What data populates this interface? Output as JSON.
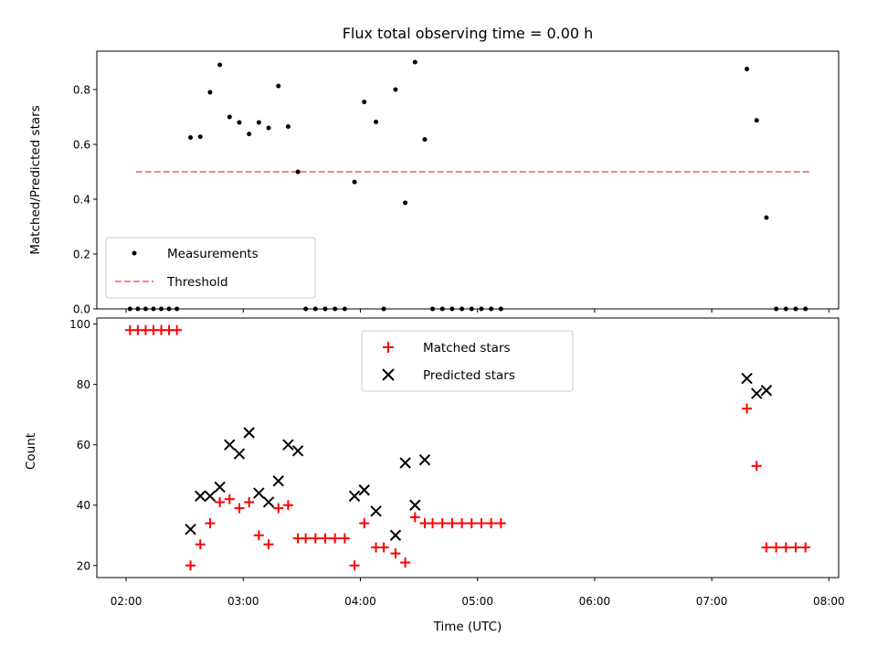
{
  "chart_data": [
    {
      "type": "scatter",
      "title": "Flux total observing time = 0.00 h",
      "xlabel": "",
      "ylabel": "Matched/Predicted stars",
      "ylim": [
        0,
        0.94
      ],
      "xlim": [
        "01:45",
        "08:05"
      ],
      "y_ticks": [
        "0.0",
        "0.2",
        "0.4",
        "0.6",
        "0.8"
      ],
      "grid": false,
      "legend_position": "lower-left",
      "series": [
        {
          "name": "Measurements",
          "kind": "points",
          "color": "#000000",
          "points": [
            [
              "02:02",
              0
            ],
            [
              "02:06",
              0
            ],
            [
              "02:10",
              0
            ],
            [
              "02:14",
              0
            ],
            [
              "02:18",
              0
            ],
            [
              "02:22",
              0
            ],
            [
              "02:26",
              0
            ],
            [
              "02:33",
              0.625
            ],
            [
              "02:38",
              0.628
            ],
            [
              "02:43",
              0.79
            ],
            [
              "02:48",
              0.89
            ],
            [
              "02:53",
              0.7
            ],
            [
              "02:58",
              0.68
            ],
            [
              "03:03",
              0.638
            ],
            [
              "03:08",
              0.68
            ],
            [
              "03:13",
              0.66
            ],
            [
              "03:18",
              0.813
            ],
            [
              "03:23",
              0.665
            ],
            [
              "03:28",
              0.5
            ],
            [
              "03:32",
              0
            ],
            [
              "03:37",
              0
            ],
            [
              "03:42",
              0
            ],
            [
              "03:47",
              0
            ],
            [
              "03:52",
              0
            ],
            [
              "03:57",
              0.463
            ],
            [
              "04:02",
              0.755
            ],
            [
              "04:08",
              0.682
            ],
            [
              "04:12",
              0
            ],
            [
              "04:18",
              0.8
            ],
            [
              "04:23",
              0.387
            ],
            [
              "04:28",
              0.9
            ],
            [
              "04:33",
              0.618
            ],
            [
              "04:37",
              0
            ],
            [
              "04:42",
              0
            ],
            [
              "04:47",
              0
            ],
            [
              "04:52",
              0
            ],
            [
              "04:57",
              0
            ],
            [
              "05:02",
              0
            ],
            [
              "05:07",
              0
            ],
            [
              "05:12",
              0
            ],
            [
              "07:18",
              0.875
            ],
            [
              "07:23",
              0.688
            ],
            [
              "07:28",
              0.333
            ],
            [
              "07:33",
              0
            ],
            [
              "07:38",
              0
            ],
            [
              "07:43",
              0
            ],
            [
              "07:48",
              0
            ]
          ]
        },
        {
          "name": "Threshold",
          "kind": "dashed-line",
          "color": "#ff8080",
          "points": [
            [
              "02:05",
              0.5
            ],
            [
              "07:50",
              0.5
            ]
          ]
        }
      ]
    },
    {
      "type": "scatter",
      "title": "",
      "xlabel": "Time (UTC)",
      "ylabel": "Count",
      "ylim": [
        16,
        102
      ],
      "xlim": [
        "01:45",
        "08:05"
      ],
      "y_ticks": [
        "20",
        "40",
        "60",
        "80",
        "100"
      ],
      "x_ticks": [
        "02:00",
        "03:00",
        "04:00",
        "05:00",
        "06:00",
        "07:00",
        "08:00"
      ],
      "grid": false,
      "legend_position": "upper-center",
      "series": [
        {
          "name": "Matched stars",
          "marker": "plus",
          "color": "#ff0000",
          "points": [
            [
              "02:02",
              98
            ],
            [
              "02:06",
              98
            ],
            [
              "02:10",
              98
            ],
            [
              "02:14",
              98
            ],
            [
              "02:18",
              98
            ],
            [
              "02:22",
              98
            ],
            [
              "02:26",
              98
            ],
            [
              "02:33",
              20
            ],
            [
              "02:38",
              27
            ],
            [
              "02:43",
              34
            ],
            [
              "02:48",
              41
            ],
            [
              "02:53",
              42
            ],
            [
              "02:58",
              39
            ],
            [
              "03:03",
              41
            ],
            [
              "03:08",
              30
            ],
            [
              "03:13",
              27
            ],
            [
              "03:18",
              39
            ],
            [
              "03:23",
              40
            ],
            [
              "03:28",
              29
            ],
            [
              "03:32",
              29
            ],
            [
              "03:37",
              29
            ],
            [
              "03:42",
              29
            ],
            [
              "03:47",
              29
            ],
            [
              "03:52",
              29
            ],
            [
              "03:57",
              20
            ],
            [
              "04:02",
              34
            ],
            [
              "04:08",
              26
            ],
            [
              "04:12",
              26
            ],
            [
              "04:18",
              24
            ],
            [
              "04:23",
              21
            ],
            [
              "04:28",
              36
            ],
            [
              "04:33",
              34
            ],
            [
              "04:37",
              34
            ],
            [
              "04:42",
              34
            ],
            [
              "04:47",
              34
            ],
            [
              "04:52",
              34
            ],
            [
              "04:57",
              34
            ],
            [
              "05:02",
              34
            ],
            [
              "05:07",
              34
            ],
            [
              "05:12",
              34
            ],
            [
              "07:18",
              72
            ],
            [
              "07:23",
              53
            ],
            [
              "07:28",
              26
            ],
            [
              "07:33",
              26
            ],
            [
              "07:38",
              26
            ],
            [
              "07:43",
              26
            ],
            [
              "07:48",
              26
            ]
          ]
        },
        {
          "name": "Predicted stars",
          "marker": "x",
          "color": "#000000",
          "points": [
            [
              "02:33",
              32
            ],
            [
              "02:38",
              43
            ],
            [
              "02:43",
              43
            ],
            [
              "02:48",
              46
            ],
            [
              "02:53",
              60
            ],
            [
              "02:58",
              57
            ],
            [
              "03:03",
              64
            ],
            [
              "03:08",
              44
            ],
            [
              "03:13",
              41
            ],
            [
              "03:18",
              48
            ],
            [
              "03:23",
              60
            ],
            [
              "03:28",
              58
            ],
            [
              "03:57",
              43
            ],
            [
              "04:02",
              45
            ],
            [
              "04:08",
              38
            ],
            [
              "04:18",
              30
            ],
            [
              "04:23",
              54
            ],
            [
              "04:28",
              40
            ],
            [
              "04:33",
              55
            ],
            [
              "07:18",
              82
            ],
            [
              "07:23",
              77
            ],
            [
              "07:28",
              78
            ]
          ]
        }
      ]
    }
  ]
}
